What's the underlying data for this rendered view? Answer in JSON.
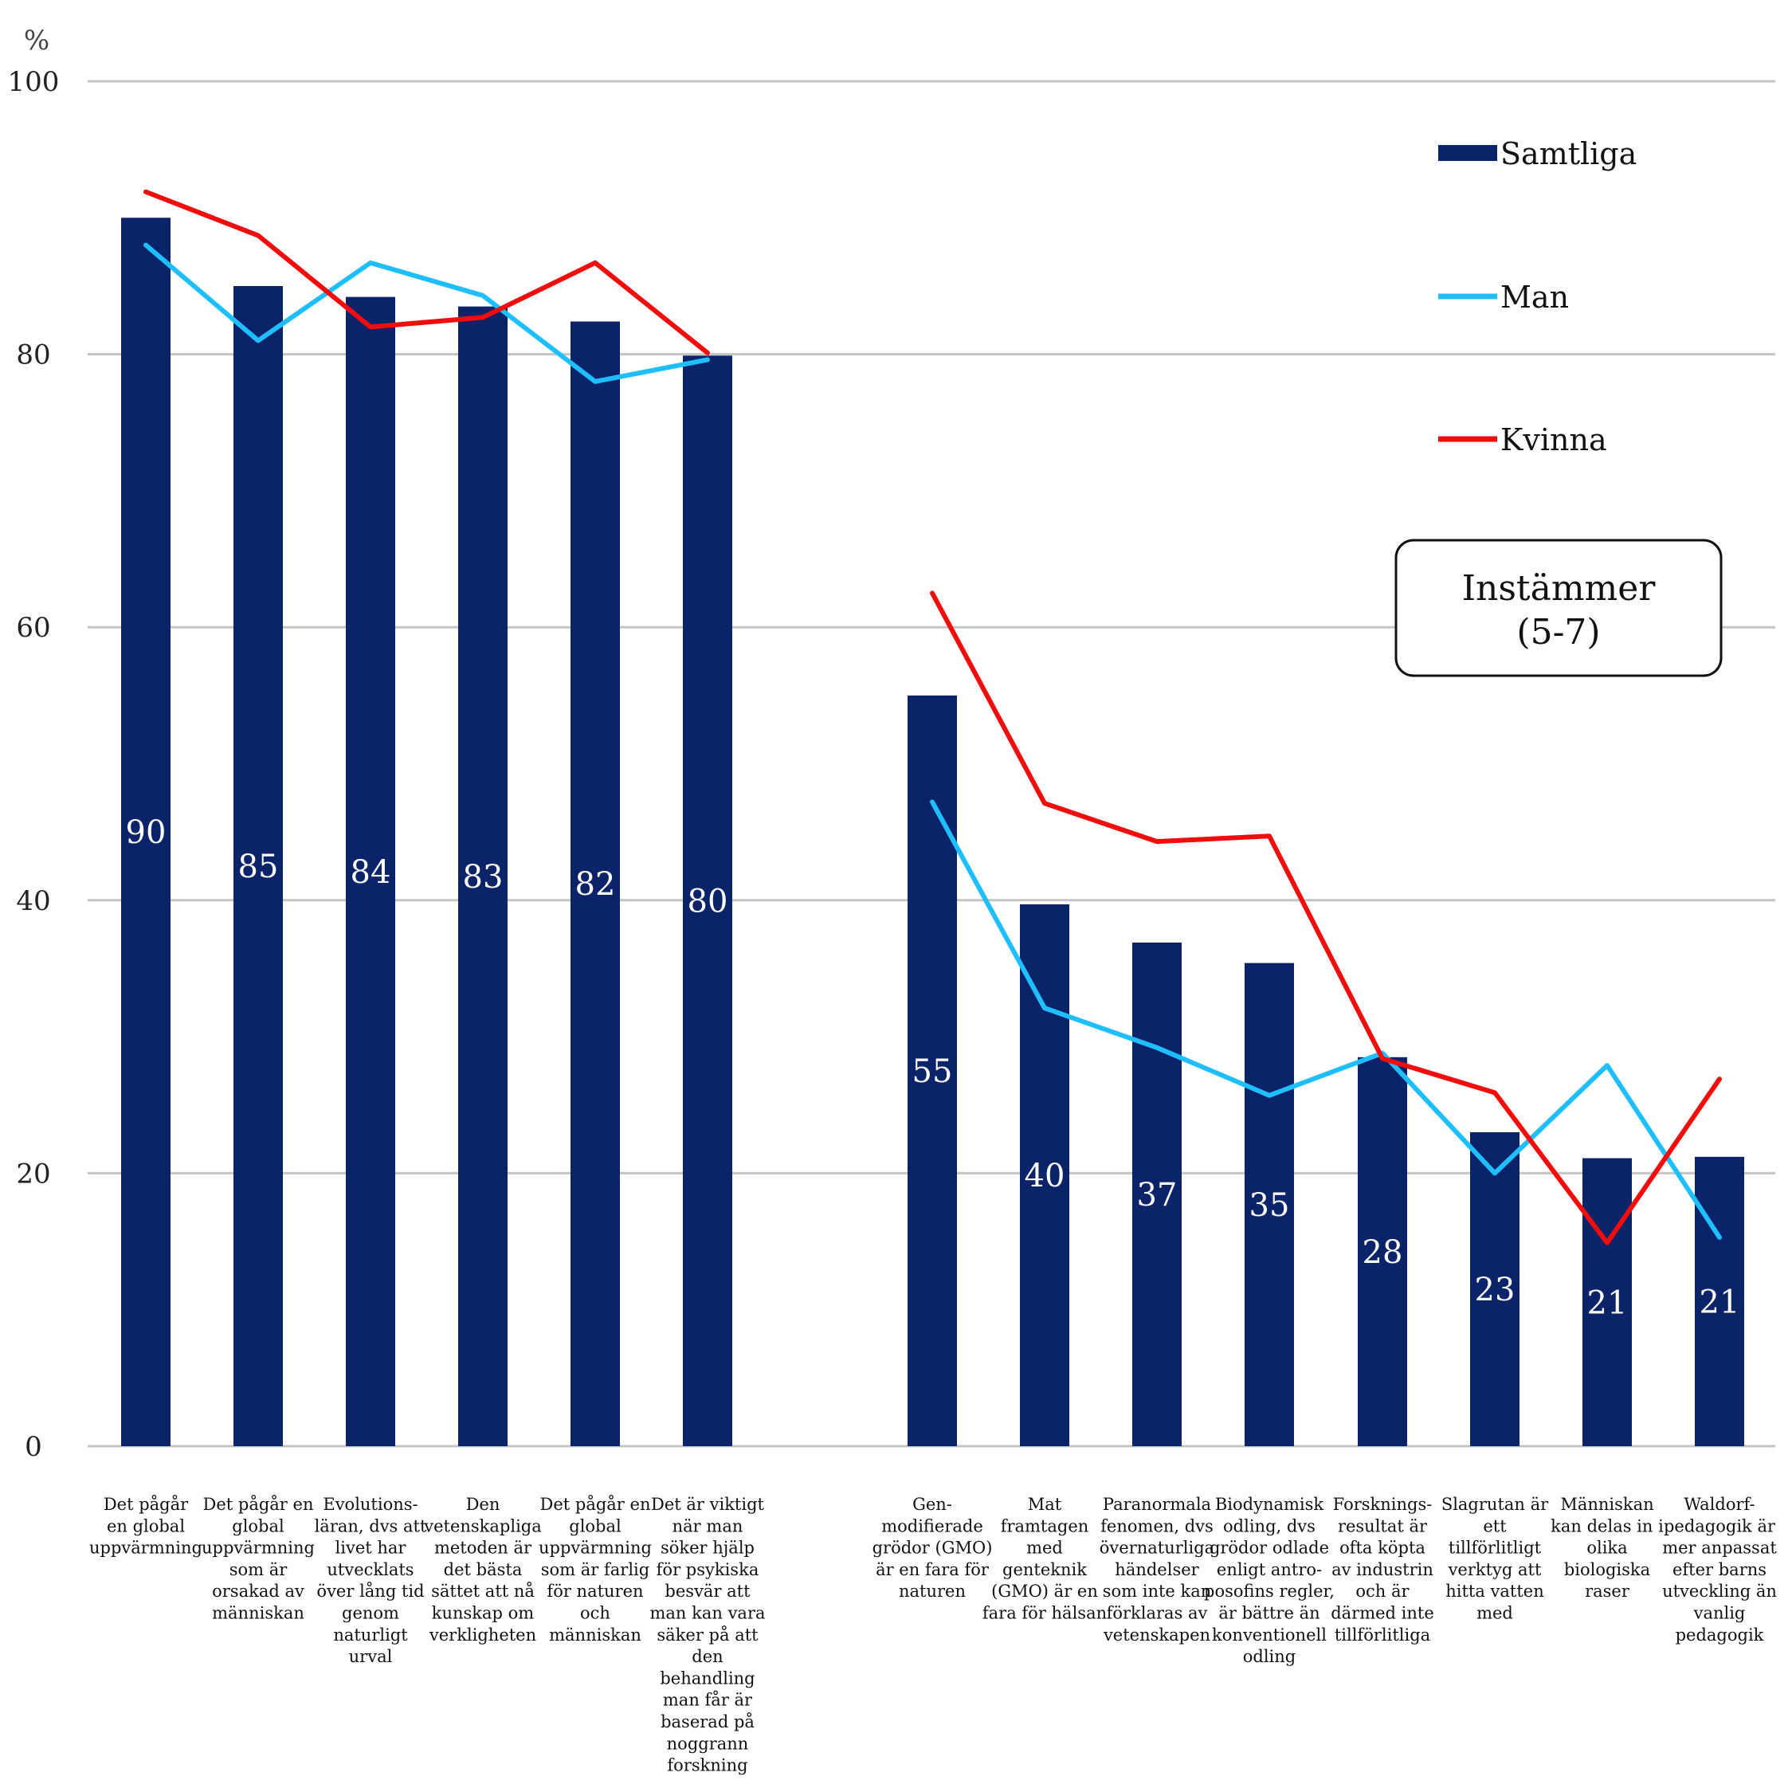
{
  "chart_data": {
    "type": "bar",
    "ylabel": "%",
    "ylim": [
      0,
      100
    ],
    "yticks": [
      "0",
      "20",
      "40",
      "60",
      "80",
      "100"
    ],
    "grid": true,
    "legend_position": "top-right",
    "note": [
      "Instämmer",
      "(5-7)"
    ],
    "categories": [
      [
        "Det pågår",
        "en global",
        "uppvärmning"
      ],
      [
        "Det pågår en",
        "global",
        "uppvärmning",
        "som är",
        "orsakad av",
        "människan"
      ],
      [
        "Evolutions-",
        "läran, dvs att",
        "livet har",
        "utvecklats",
        "över lång tid",
        "genom",
        "naturligt",
        "urval"
      ],
      [
        "Den",
        "vetenskapliga",
        "metoden är",
        "det bästa",
        "sättet att nå",
        "kunskap om",
        "verkligheten"
      ],
      [
        "Det pågår en",
        "global",
        "uppvärmning",
        "som är farlig",
        "för naturen",
        "och",
        "människan"
      ],
      [
        "Det är viktigt",
        "när man",
        "söker hjälp",
        "för psykiska",
        "besvär att",
        "man kan vara",
        "säker på att",
        "den",
        "behandling",
        "man får är",
        "baserad på",
        "noggrann",
        "forskning"
      ],
      [
        "Gen-",
        "modifierade",
        "grödor (GMO)",
        "är en fara för",
        "naturen"
      ],
      [
        "Mat",
        "framtagen",
        "med",
        "genteknik",
        "(GMO) är en",
        "fara för hälsan"
      ],
      [
        "Paranormala",
        "fenomen, dvs",
        "övernaturliga",
        "händelser",
        "som inte kan",
        "förklaras av",
        "vetenskapen"
      ],
      [
        "Biodynamisk",
        "odling, dvs",
        "grödor odlade",
        "enligt antro-",
        "posofins regler,",
        "är bättre än",
        "konventionell",
        "odling"
      ],
      [
        "Forsknings-",
        "resultat är",
        "ofta köpta",
        "av industrin",
        "och är",
        "därmed inte",
        "tillförlitliga"
      ],
      [
        "Slagrutan är",
        "ett",
        "tillförlitligt",
        "verktyg att",
        "hitta vatten",
        "med"
      ],
      [
        "Människan",
        "kan delas in i",
        "olika",
        "biologiska",
        "raser"
      ],
      [
        "Waldorf-",
        "pedagogik är",
        "mer anpassat",
        "efter barns",
        "utveckling än",
        "vanlig",
        "pedagogik"
      ]
    ],
    "data_labels": [
      "90",
      "85",
      "84",
      "83",
      "82",
      "80",
      "55",
      "40",
      "37",
      "35",
      "28",
      "23",
      "21",
      "21"
    ],
    "series": [
      {
        "name": "Samtliga",
        "type": "bar",
        "color": "#0a2369",
        "values": [
          90,
          85,
          84.2,
          83.5,
          82.4,
          79.9,
          55,
          39.7,
          36.9,
          35.4,
          28.5,
          23,
          21.1,
          21.2
        ]
      },
      {
        "name": "Man",
        "type": "line",
        "color": "#1fbfff",
        "values": [
          88,
          81,
          86.7,
          84.3,
          78,
          79.6,
          47.2,
          32.1,
          29.2,
          25.7,
          28.8,
          20,
          27.9,
          15.3
        ]
      },
      {
        "name": "Kvinna",
        "type": "line",
        "color": "#f20d0d",
        "values": [
          91.9,
          88.7,
          82,
          82.7,
          86.7,
          80.1,
          62.5,
          47.1,
          44.3,
          44.7,
          28.4,
          25.9,
          14.9,
          26.9
        ]
      }
    ]
  }
}
